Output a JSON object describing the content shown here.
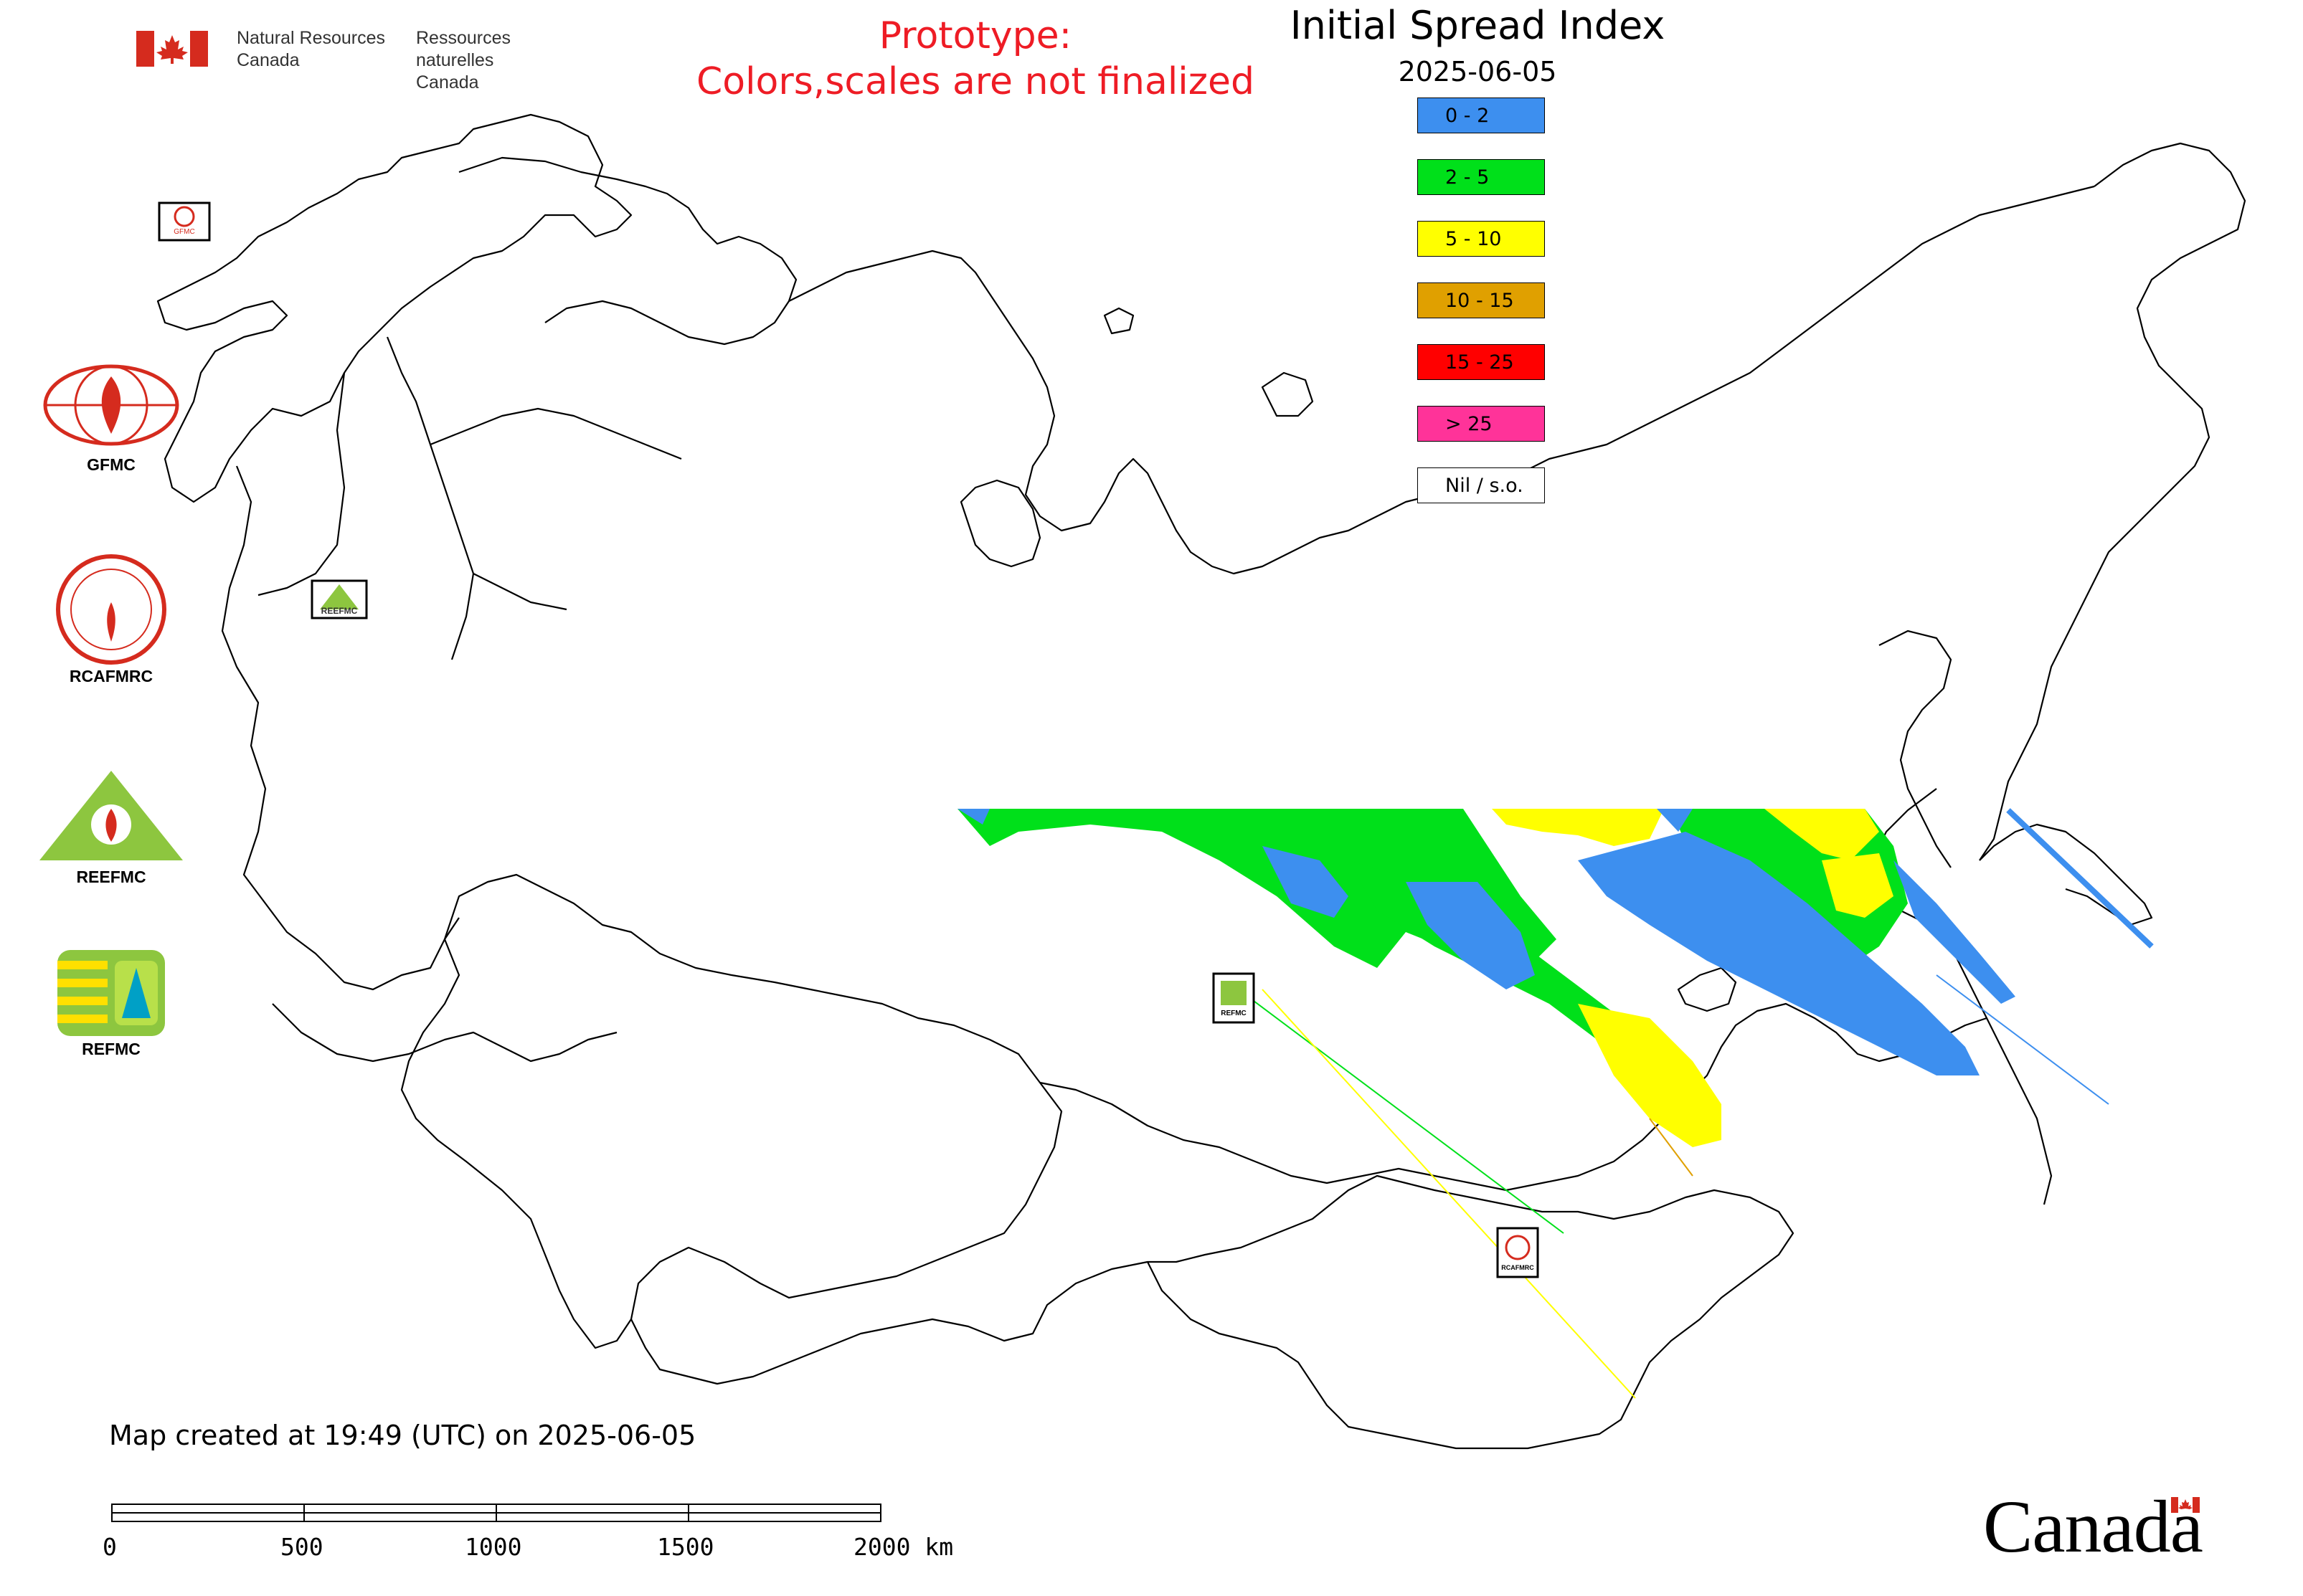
{
  "header": {
    "agency_en_line1": "Natural Resources",
    "agency_en_line2": "Canada",
    "agency_fr_line1": "Ressources naturelles",
    "agency_fr_line2": "Canada"
  },
  "notice": {
    "line1": "Prototype:",
    "line2": "Colors,scales are not finalized"
  },
  "map": {
    "title": "Initial Spread Index",
    "date": "2025-06-05"
  },
  "legend": {
    "items": [
      {
        "label": "0 - 2",
        "color": "#3d8fef"
      },
      {
        "label": "2 - 5",
        "color": "#00e01a"
      },
      {
        "label": "5 - 10",
        "color": "#ffff00"
      },
      {
        "label": "10 - 15",
        "color": "#e0a000"
      },
      {
        "label": "15 - 25",
        "color": "#ff0000"
      },
      {
        "label": "> 25",
        "color": "#ff3399"
      },
      {
        "label": "Nil / s.o.",
        "color": "#ffffff"
      }
    ]
  },
  "logos": [
    {
      "caption": "GFMC"
    },
    {
      "caption": "RCAFMRC"
    },
    {
      "caption": "REEFMC"
    },
    {
      "caption": "REFMC"
    }
  ],
  "map_markers": [
    {
      "caption": "GFMC"
    },
    {
      "caption": "REEFMC"
    },
    {
      "caption": "REFMC"
    },
    {
      "caption": "RCAFMRC"
    }
  ],
  "footer": {
    "created": "Map created at 19:49 (UTC) on 2025-06-05",
    "scale_labels": [
      "0",
      "500",
      "1000",
      "1500",
      "2000 km"
    ],
    "wordmark": "Canada"
  },
  "colors": {
    "notice": "#ee1c25",
    "flag_red": "#d52b1e"
  }
}
